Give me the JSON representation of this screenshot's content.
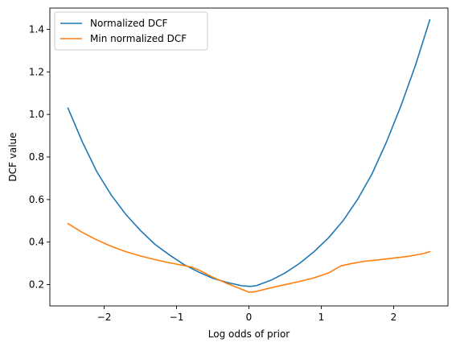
{
  "chart_data": {
    "type": "line",
    "title": "",
    "xlabel": "Log odds of prior",
    "ylabel": "DCF value",
    "xlim": [
      -2.75,
      2.75
    ],
    "ylim": [
      0.1,
      1.5
    ],
    "xticks": [
      -2,
      -1,
      0,
      1,
      2
    ],
    "xtick_labels": [
      "−2",
      "−1",
      "0",
      "1",
      "2"
    ],
    "yticks": [
      0.2,
      0.4,
      0.6,
      0.8,
      1.0,
      1.2,
      1.4
    ],
    "ytick_labels": [
      "0.2",
      "0.4",
      "0.6",
      "0.8",
      "1.0",
      "1.2",
      "1.4"
    ],
    "grid": false,
    "legend_position": "upper-left",
    "series": [
      {
        "name": "Normalized DCF",
        "color": "#1f77b4",
        "x": [
          -2.5,
          -2.3,
          -2.1,
          -1.9,
          -1.7,
          -1.5,
          -1.3,
          -1.1,
          -0.9,
          -0.7,
          -0.5,
          -0.3,
          -0.1,
          0.0,
          0.05,
          0.1,
          0.3,
          0.5,
          0.7,
          0.9,
          1.1,
          1.3,
          1.5,
          1.7,
          1.9,
          2.1,
          2.3,
          2.5
        ],
        "y": [
          1.03,
          0.87,
          0.73,
          0.62,
          0.53,
          0.455,
          0.39,
          0.34,
          0.295,
          0.26,
          0.23,
          0.21,
          0.195,
          0.192,
          0.193,
          0.195,
          0.22,
          0.255,
          0.3,
          0.355,
          0.42,
          0.5,
          0.6,
          0.72,
          0.87,
          1.04,
          1.23,
          1.445
        ]
      },
      {
        "name": "Min normalized DCF",
        "color": "#ff7f0e",
        "x": [
          -2.5,
          -2.3,
          -2.1,
          -1.9,
          -1.7,
          -1.5,
          -1.3,
          -1.1,
          -0.9,
          -0.8,
          -0.7,
          -0.5,
          -0.3,
          -0.1,
          0.0,
          0.05,
          0.1,
          0.3,
          0.5,
          0.7,
          0.9,
          1.1,
          1.27,
          1.4,
          1.6,
          1.8,
          2.0,
          2.2,
          2.4,
          2.5
        ],
        "y": [
          0.487,
          0.445,
          0.41,
          0.38,
          0.355,
          0.335,
          0.318,
          0.303,
          0.29,
          0.283,
          0.27,
          0.235,
          0.205,
          0.178,
          0.165,
          0.165,
          0.168,
          0.185,
          0.2,
          0.215,
          0.232,
          0.255,
          0.288,
          0.298,
          0.31,
          0.317,
          0.325,
          0.333,
          0.345,
          0.355
        ]
      }
    ]
  }
}
